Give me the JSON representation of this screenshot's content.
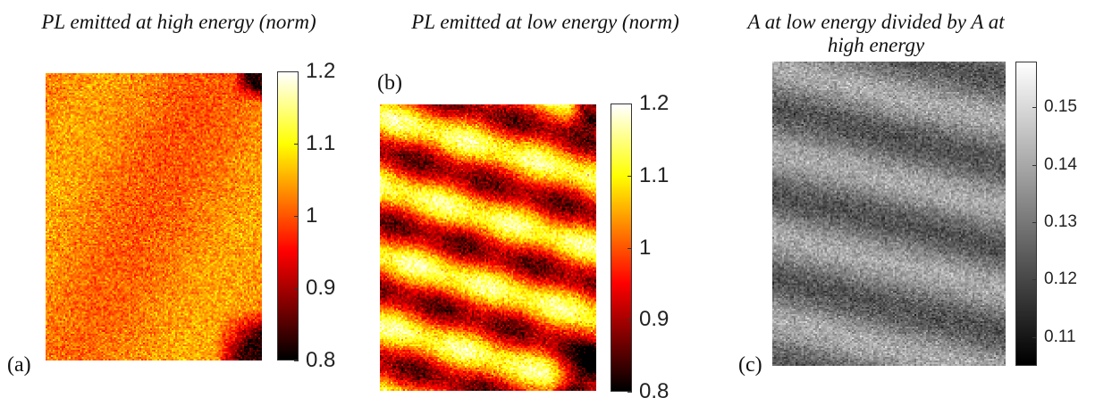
{
  "chart_data": [
    {
      "type": "heatmap",
      "panel_label": "(a)",
      "title": "PL emitted at high energy (norm)",
      "colormap": "hot",
      "clim": [
        0.8,
        1.2
      ],
      "colorbar_ticks": [
        "0.8",
        "0.9",
        "1",
        "1.1",
        "1.2"
      ],
      "colorbar_tick_values": [
        0.8,
        0.9,
        1.0,
        1.1,
        1.2
      ],
      "texture": "uniform noisy field, mean ≈ 1.0, slightly brighter on lower-left, dark corners on right edge"
    },
    {
      "type": "heatmap",
      "panel_label": "(b)",
      "title": "PL emitted at low energy (norm)",
      "colormap": "hot",
      "clim": [
        0.8,
        1.2
      ],
      "colorbar_ticks": [
        "0.8",
        "0.9",
        "1",
        "1.1",
        "1.2"
      ],
      "colorbar_tick_values": [
        0.8,
        0.9,
        1.0,
        1.1,
        1.2
      ],
      "texture": "diagonal alternating bright/dark stripes, dark corners on right edge"
    },
    {
      "type": "heatmap",
      "panel_label": "(c)",
      "title": "A at low energy divided by A at high energy",
      "colormap": "gray",
      "clim": [
        0.105,
        0.158
      ],
      "colorbar_ticks": [
        "0.11",
        "0.12",
        "0.13",
        "0.14",
        "0.15"
      ],
      "colorbar_tick_values": [
        0.11,
        0.12,
        0.13,
        0.14,
        0.15
      ],
      "texture": "diagonal alternating light/dark grey stripes"
    }
  ]
}
